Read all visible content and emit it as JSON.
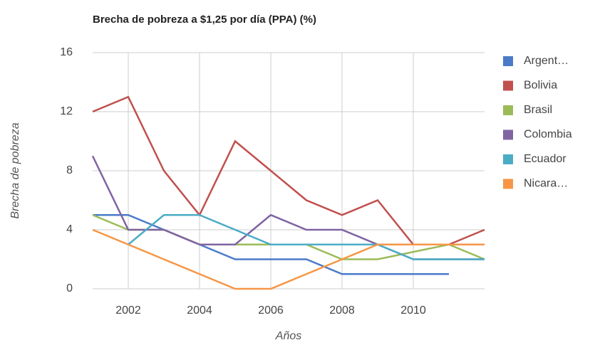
{
  "chart_data": {
    "type": "line",
    "title": "Brecha de pobreza a $1,25 por día (PPA) (%)",
    "x_label": "Años",
    "y_label": "Brecha de pobreza",
    "x": [
      2001,
      2002,
      2003,
      2004,
      2005,
      2006,
      2007,
      2008,
      2009,
      2010,
      2011,
      2012
    ],
    "series": [
      {
        "name": "Argent…",
        "color": "#4a7bc8",
        "values": [
          5,
          5,
          4,
          3,
          2,
          2,
          2,
          1,
          1,
          1,
          1,
          null
        ]
      },
      {
        "name": "Bolivia",
        "color": "#c0504d",
        "values": [
          12,
          13,
          8,
          5,
          10,
          8,
          6,
          5,
          6,
          3,
          3,
          4
        ]
      },
      {
        "name": "Brasil",
        "color": "#9bbb59",
        "values": [
          5,
          4,
          4,
          3,
          3,
          3,
          3,
          2,
          2,
          2.5,
          3,
          2
        ]
      },
      {
        "name": "Colombia",
        "color": "#8064a2",
        "values": [
          9,
          4,
          4,
          3,
          3,
          5,
          4,
          4,
          3,
          2,
          2,
          2
        ]
      },
      {
        "name": "Ecuador",
        "color": "#4bacc6",
        "values": [
          null,
          3,
          5,
          5,
          4,
          3,
          3,
          3,
          3,
          2,
          2,
          2
        ]
      },
      {
        "name": "Nicara…",
        "color": "#f79646",
        "values": [
          4,
          3,
          2,
          1,
          0,
          0,
          1,
          2,
          3,
          3,
          3,
          3
        ]
      }
    ],
    "xlim": [
      2001,
      2012
    ],
    "xticks": [
      2002,
      2004,
      2006,
      2008,
      2010
    ],
    "ylim": [
      0,
      16
    ],
    "yticks": [
      0,
      4,
      8,
      12,
      16
    ],
    "grid": true,
    "legend": "right"
  }
}
